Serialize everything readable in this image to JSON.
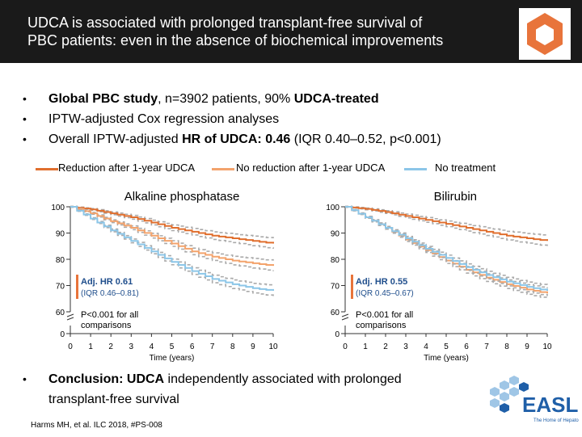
{
  "slide": {
    "title_line1": "UDCA is associated with prolonged transplant-free survival of",
    "title_line2": "PBC patients: even in the absence of biochemical improvements",
    "bullets": [
      {
        "bold1": "Global PBC study",
        "text1": ", n=3902 patients, 90% ",
        "bold2": "UDCA-treated"
      },
      {
        "text1": "IPTW-adjusted Cox regression analyses"
      },
      {
        "text1": "Overall IPTW-adjusted ",
        "bold1": "HR of UDCA: 0.46",
        "text2": " (IQR 0.40–0.52, p<0.001)"
      }
    ],
    "bullet_symbol": "•",
    "conclusion": {
      "bold1": "Conclusion: UDCA",
      "text1": " independently associated with prolonged",
      "text2": "transplant-free survival"
    },
    "footnote": "Harms MH, et al. ILC 2018, #PS-008",
    "logo": {
      "name": "EASL",
      "tagline": "The Home of Hepatology"
    }
  },
  "colors": {
    "header_bg": "#1a1a1a",
    "accent_orange": "#e8743b",
    "reduction": "#e06f2e",
    "no_reduction": "#f3a36c",
    "no_treatment": "#8cc6e8",
    "easl_blue": "#1f5fa8"
  },
  "legend": [
    {
      "label": "Reduction after 1-year UDCA",
      "color": "#e06f2e"
    },
    {
      "label": "No reduction after 1-year UDCA",
      "color": "#f3a36c"
    },
    {
      "label": "No treatment",
      "color": "#8cc6e8"
    }
  ],
  "chart_data": [
    {
      "type": "line",
      "title": "Alkaline phosphatase",
      "xlabel": "Time (years)",
      "ylabel": "",
      "xlim": [
        0,
        10
      ],
      "ylim": [
        60,
        100
      ],
      "y_ticks": [
        100,
        90,
        80,
        70,
        60
      ],
      "y_break_tick": 0,
      "x_ticks": [
        0,
        1,
        2,
        3,
        4,
        5,
        6,
        7,
        8,
        9,
        10
      ],
      "annotation_hr": "Adj. HR 0.61",
      "annotation_iqr": "(IQR 0.46–0.81)",
      "annotation_p1": "P<0.001 for all",
      "annotation_p2": "comparisons",
      "x": [
        0,
        1,
        2,
        3,
        4,
        5,
        6,
        7,
        8,
        9,
        10
      ],
      "series": [
        {
          "name": "Reduction after 1-year UDCA",
          "values": [
            100,
            99,
            97.5,
            96,
            94,
            92,
            90.5,
            89,
            88,
            87,
            86
          ]
        },
        {
          "name": "No reduction after 1-year UDCA",
          "values": [
            100,
            97.5,
            94.5,
            92,
            89,
            86,
            83,
            81,
            79.5,
            78.5,
            77.5
          ]
        },
        {
          "name": "No treatment",
          "values": [
            100,
            95.5,
            91,
            87,
            83,
            79,
            75.5,
            72.5,
            70.5,
            69,
            68
          ]
        }
      ]
    },
    {
      "type": "line",
      "title": "Bilirubin",
      "xlabel": "Time (years)",
      "ylabel": "",
      "xlim": [
        0,
        10
      ],
      "ylim": [
        60,
        100
      ],
      "y_ticks": [
        100,
        90,
        80,
        70,
        60
      ],
      "y_break_tick": 0,
      "x_ticks": [
        0,
        1,
        2,
        3,
        4,
        5,
        6,
        7,
        8,
        9,
        10
      ],
      "annotation_hr": "Adj. HR 0.55",
      "annotation_iqr": "(IQR 0.45–0.67)",
      "annotation_p1": "P<0.001 for all",
      "annotation_p2": "comparisons",
      "x": [
        0,
        1,
        2,
        3,
        4,
        5,
        6,
        7,
        8,
        9,
        10
      ],
      "series": [
        {
          "name": "Reduction after 1-year UDCA",
          "values": [
            100,
            99.2,
            98,
            96.5,
            95,
            93.5,
            92,
            90.5,
            89,
            88,
            87
          ]
        },
        {
          "name": "No reduction after 1-year UDCA",
          "values": [
            100,
            96,
            92,
            87.5,
            83.5,
            79.5,
            76,
            73,
            70.5,
            68.5,
            67
          ]
        },
        {
          "name": "No treatment",
          "values": [
            100,
            96,
            92,
            88,
            84,
            80.5,
            77,
            74,
            71.5,
            69.5,
            68
          ]
        }
      ]
    }
  ]
}
